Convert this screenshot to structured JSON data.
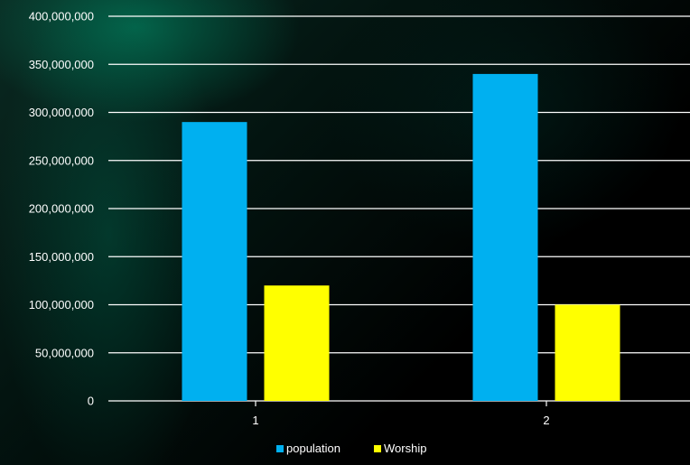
{
  "chart_data": {
    "type": "bar",
    "title": "",
    "xlabel": "",
    "ylabel": "",
    "categories": [
      "1",
      "2"
    ],
    "series": [
      {
        "name": "population",
        "values": [
          290000000,
          340000000
        ],
        "color": "#00b0f0"
      },
      {
        "name": "Worship",
        "values": [
          120000000,
          100000000
        ],
        "color": "#ffff00"
      }
    ],
    "ylim": [
      0,
      400000000
    ],
    "y_ticks": [
      0,
      50000000,
      100000000,
      150000000,
      200000000,
      250000000,
      300000000,
      350000000,
      400000000
    ],
    "y_tick_labels": [
      "0",
      "50,000,000",
      "100,000,000",
      "150,000,000",
      "200,000,000",
      "250,000,000",
      "300,000,000",
      "350,000,000",
      "400,000,000"
    ],
    "grid": true,
    "legend_position": "bottom",
    "colors": {
      "gridline": "#ffffff",
      "text": "#ffffff"
    }
  }
}
